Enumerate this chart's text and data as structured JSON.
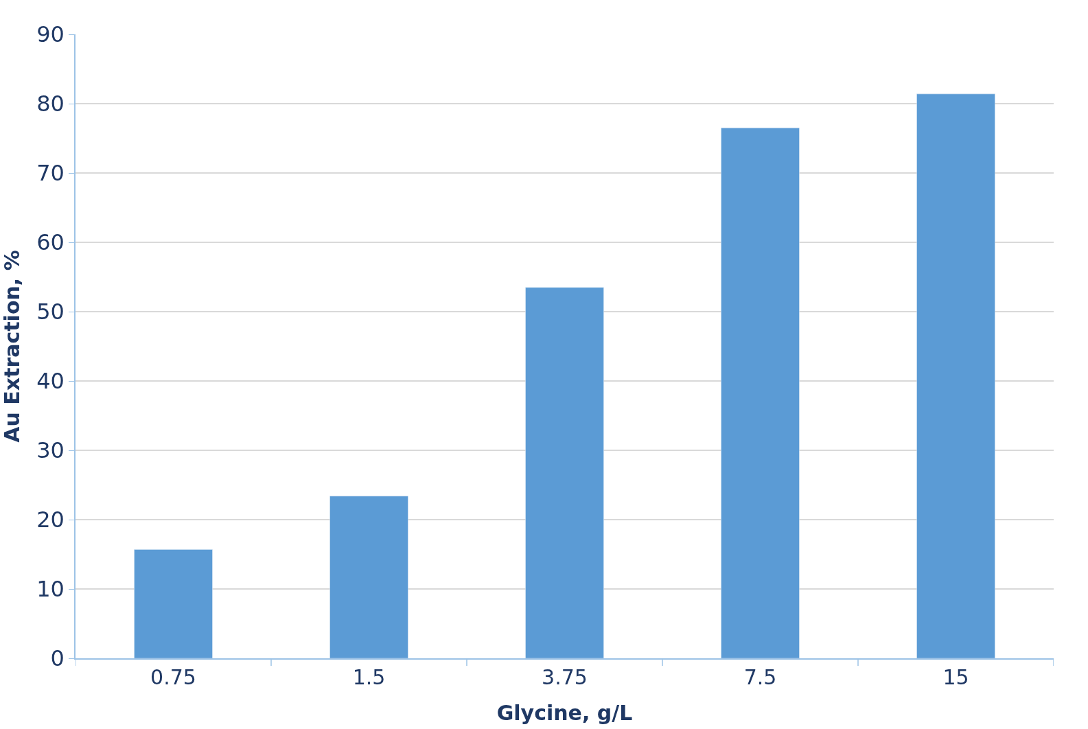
{
  "chart_data": {
    "type": "bar",
    "xlabel": "Glycine, g/L",
    "ylabel": "Au Extraction, %",
    "categories": [
      "0.75",
      "1.5",
      "3.75",
      "7.5",
      "15"
    ],
    "values": [
      15.7,
      23.4,
      53.5,
      76.5,
      81.4
    ],
    "color": "#5b9bd5",
    "ylim": [
      0,
      90
    ],
    "yticks": [
      0,
      10,
      20,
      30,
      40,
      50,
      60,
      70,
      80,
      90
    ],
    "grid": "y"
  }
}
